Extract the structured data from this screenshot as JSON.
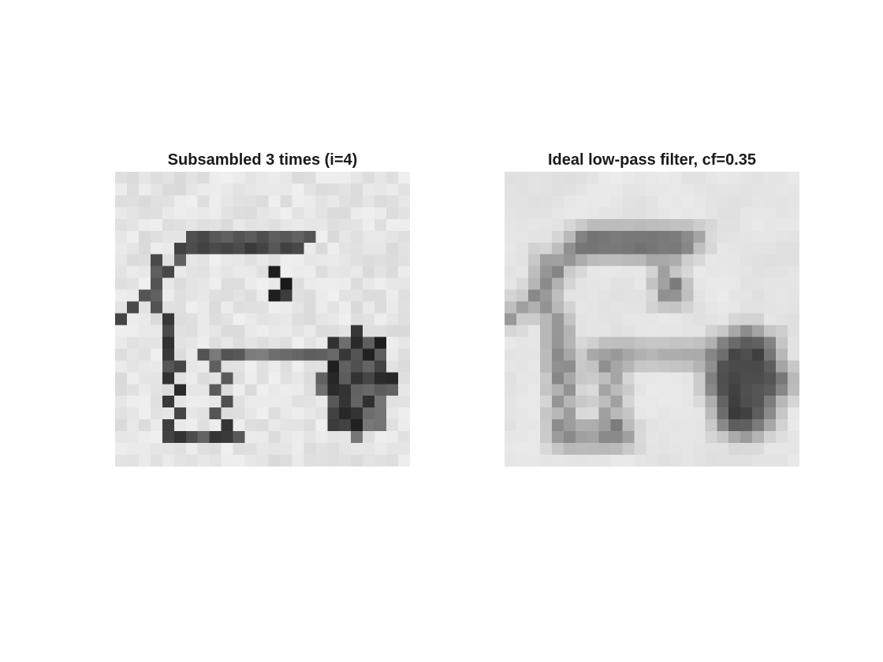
{
  "figure": {
    "panels": [
      {
        "title": "Subsambled 3 times (i=4)",
        "image_description": "pixelated grayscale handwritten digit image"
      },
      {
        "title": "Ideal low-pass filter, cf=0.35",
        "image_description": "smoothed grayscale handwritten digit image with ringing artifacts"
      }
    ]
  },
  "colors": {
    "background": "#ffffff",
    "title_text": "#1a1a1a",
    "light_gray": "#e6e6e6",
    "ink": "#222222"
  }
}
